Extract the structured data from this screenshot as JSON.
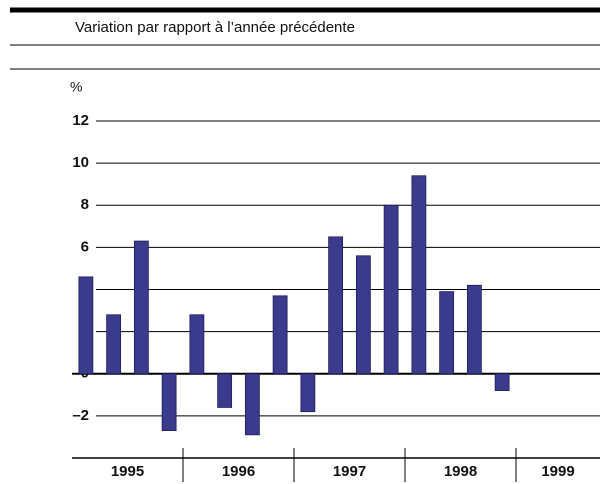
{
  "chart_data": {
    "type": "bar",
    "subtitle": "Variation par rapport à l’année précédente",
    "y_unit": "%",
    "color": "#3b3b8e",
    "groups": [
      {
        "label": "1995",
        "values": [
          4.6,
          2.8,
          6.3,
          -2.7
        ]
      },
      {
        "label": "1996",
        "values": [
          2.8,
          -1.6,
          -2.9,
          3.7
        ]
      },
      {
        "label": "1997",
        "values": [
          -1.8,
          6.5,
          5.6,
          8.0
        ]
      },
      {
        "label": "1998",
        "values": [
          9.4,
          3.9,
          4.2,
          -0.8
        ]
      },
      {
        "label": "1999",
        "values": []
      }
    ],
    "ylim": [
      -4,
      12
    ],
    "yticks": [
      {
        "value": -2,
        "label": "–2"
      },
      0,
      2,
      4,
      6,
      8,
      10,
      12
    ],
    "grid": true
  }
}
